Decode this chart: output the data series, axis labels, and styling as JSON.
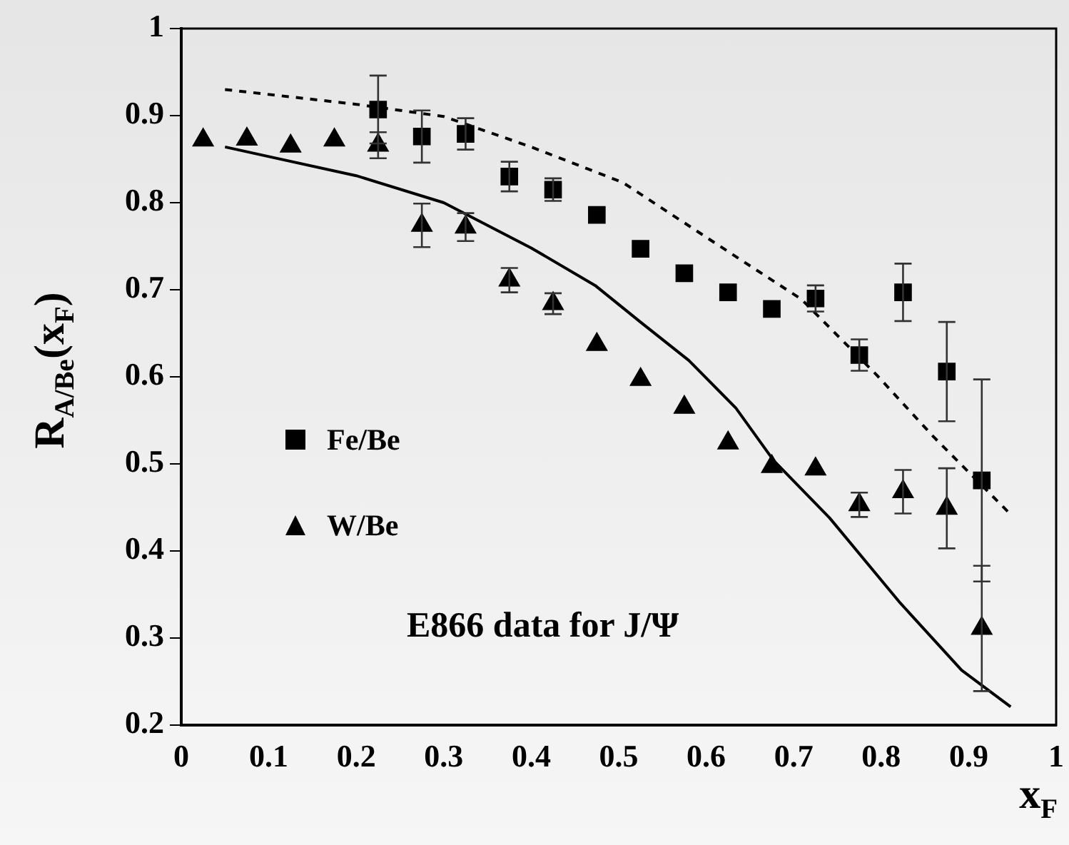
{
  "chart_data": {
    "type": "scatter",
    "xlabel": "x$_{F}$",
    "ylabel": "R$_{A/Be}$(x$_{F}$)",
    "annotations": [
      "E866 data for J/Ψ"
    ],
    "xlim": [
      0,
      1
    ],
    "ylim": [
      0.2,
      1
    ],
    "xticks": [
      0,
      0.1,
      0.2,
      0.3,
      0.4,
      0.5,
      0.6,
      0.7,
      0.8,
      0.9,
      1
    ],
    "yticks": [
      0.2,
      0.3,
      0.4,
      0.5,
      0.6,
      0.7,
      0.8,
      0.9,
      1
    ],
    "legend": "left",
    "grid": false,
    "series": [
      {
        "name": "Fe/Be",
        "marker": "square",
        "color": "#000000",
        "x": [
          0.225,
          0.275,
          0.325,
          0.375,
          0.425,
          0.475,
          0.525,
          0.575,
          0.625,
          0.675,
          0.725,
          0.775,
          0.825,
          0.875,
          0.915
        ],
        "values": [
          0.907,
          0.876,
          0.879,
          0.83,
          0.815,
          0.786,
          0.747,
          0.719,
          0.697,
          0.678,
          0.69,
          0.625,
          0.697,
          0.606,
          0.481
        ],
        "errors": [
          0.039,
          0.03,
          0.018,
          0.017,
          0.013,
          null,
          null,
          null,
          null,
          null,
          0.015,
          0.018,
          0.033,
          0.057,
          0.116
        ]
      },
      {
        "name": "W/Be",
        "marker": "triangle",
        "color": "#000000",
        "x": [
          0.025,
          0.075,
          0.125,
          0.175,
          0.225,
          0.275,
          0.325,
          0.375,
          0.425,
          0.475,
          0.525,
          0.575,
          0.625,
          0.675,
          0.725,
          0.775,
          0.825,
          0.875,
          0.915
        ],
        "values": [
          0.872,
          0.873,
          0.865,
          0.872,
          0.866,
          0.774,
          0.772,
          0.711,
          0.684,
          0.637,
          0.597,
          0.565,
          0.524,
          0.497,
          0.494,
          0.453,
          0.468,
          0.449,
          0.311
        ],
        "errors": [
          null,
          null,
          null,
          null,
          0.015,
          0.025,
          0.016,
          0.014,
          0.012,
          null,
          null,
          null,
          null,
          null,
          null,
          0.014,
          0.025,
          0.046,
          0.072
        ]
      },
      {
        "type": "line",
        "line_style": "dashed",
        "marker": "none",
        "color": "#000000",
        "x": [
          0.05,
          0.2,
          0.3,
          0.4,
          0.477,
          0.505,
          0.634,
          0.709,
          0.795,
          0.86,
          0.948
        ],
        "values": [
          0.93,
          0.913,
          0.899,
          0.864,
          0.834,
          0.823,
          0.738,
          0.689,
          0.602,
          0.531,
          0.442
        ]
      },
      {
        "type": "line",
        "line_style": "solid",
        "marker": "none",
        "color": "#000000",
        "x": [
          0.05,
          0.1,
          0.2,
          0.3,
          0.4,
          0.473,
          0.526,
          0.58,
          0.634,
          0.677,
          0.741,
          0.822,
          0.892,
          0.948
        ],
        "values": [
          0.864,
          0.853,
          0.831,
          0.8,
          0.748,
          0.705,
          0.662,
          0.619,
          0.564,
          0.504,
          0.438,
          0.34,
          0.263,
          0.221
        ]
      }
    ]
  }
}
